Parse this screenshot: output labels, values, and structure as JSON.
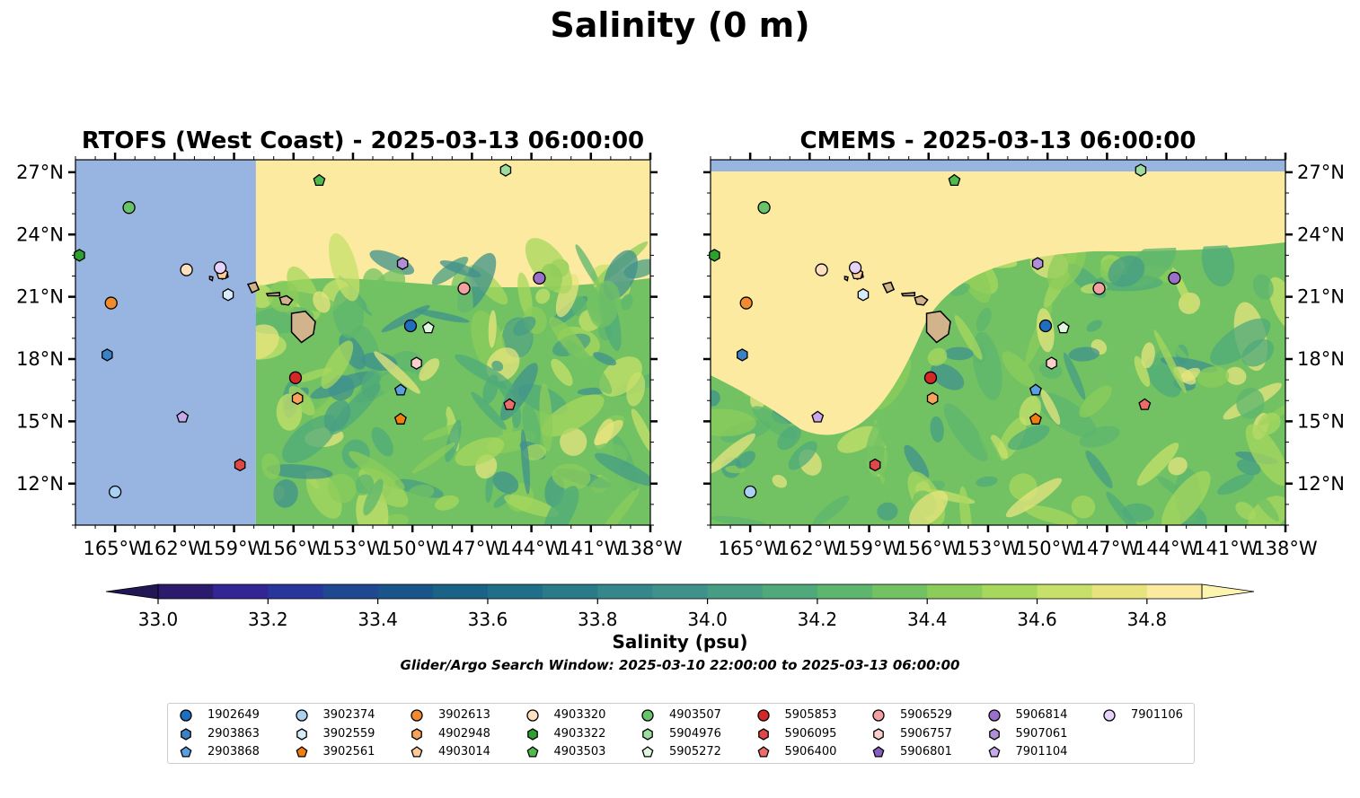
{
  "title": "Salinity (0 m)",
  "panels": [
    {
      "title": "RTOFS (West Coast) - 2025-03-13 06:00:00"
    },
    {
      "title": "CMEMS - 2025-03-13 06:00:00"
    }
  ],
  "map": {
    "lon_range": [
      -167,
      -138
    ],
    "lat_range": [
      10,
      27.6
    ],
    "x_ticks": [
      "165°W",
      "162°W",
      "159°W",
      "156°W",
      "153°W",
      "150°W",
      "147°W",
      "144°W",
      "141°W",
      "138°W"
    ],
    "y_ticks": [
      "27°N",
      "24°N",
      "21°N",
      "18°N",
      "15°N",
      "12°N"
    ],
    "land_color": "#d2b48c",
    "no_data_color": "#97b5e0"
  },
  "colorbar": {
    "label": "Salinity (psu)",
    "ticks": [
      "33.0",
      "33.2",
      "33.4",
      "33.6",
      "33.8",
      "34.0",
      "34.2",
      "34.4",
      "34.6",
      "34.8"
    ],
    "range": [
      33.0,
      34.9
    ],
    "extend": "both",
    "colors": [
      "#2c1a6d",
      "#322594",
      "#28369b",
      "#1f4890",
      "#19558a",
      "#1b6287",
      "#206f88",
      "#2a7b8a",
      "#36878b",
      "#3f928c",
      "#469d84",
      "#4fa97a",
      "#5db56e",
      "#72c163",
      "#8ccc5a",
      "#a8d75d",
      "#c7e06a",
      "#e7e47e",
      "#fbea9f"
    ]
  },
  "search_window": "Glider/Argo Search Window: 2025-03-10 22:00:00 to 2025-03-13 06:00:00",
  "floats": [
    {
      "id": "1902649",
      "marker": "circle",
      "color": "#1f6fbf",
      "lon": -150.1,
      "lat": 19.6
    },
    {
      "id": "2903863",
      "marker": "hexagon",
      "color": "#3a82c4",
      "lon": -165.4,
      "lat": 18.2
    },
    {
      "id": "2903868",
      "marker": "pentagon",
      "color": "#5aa0e0",
      "lon": -150.6,
      "lat": 16.5
    },
    {
      "id": "3902374",
      "marker": "circle",
      "color": "#a9d2f2",
      "lon": -165.0,
      "lat": 11.6
    },
    {
      "id": "3902559",
      "marker": "hexagon",
      "color": "#d7ecfa",
      "lon": -159.3,
      "lat": 21.1
    },
    {
      "id": "3902561",
      "marker": "pentagon",
      "color": "#f07f0f",
      "lon": -150.6,
      "lat": 15.1
    },
    {
      "id": "3902613",
      "marker": "circle",
      "color": "#f28b30",
      "lon": -165.2,
      "lat": 20.7
    },
    {
      "id": "4902948",
      "marker": "hexagon",
      "color": "#f7a35c",
      "lon": -155.8,
      "lat": 16.1
    },
    {
      "id": "4903014",
      "marker": "pentagon",
      "color": "#fbcb9a",
      "lon": -159.6,
      "lat": 22.1
    },
    {
      "id": "4903320",
      "marker": "circle",
      "color": "#fde0c0",
      "lon": -161.4,
      "lat": 22.3
    },
    {
      "id": "4903322",
      "marker": "hexagon",
      "color": "#2ea02e",
      "lon": -166.8,
      "lat": 23.0
    },
    {
      "id": "4903503",
      "marker": "pentagon",
      "color": "#4fbb4f",
      "lon": -154.7,
      "lat": 26.6
    },
    {
      "id": "4903507",
      "marker": "circle",
      "color": "#68c468",
      "lon": -164.3,
      "lat": 25.3
    },
    {
      "id": "5904976",
      "marker": "hexagon",
      "color": "#9fdc9f",
      "lon": -145.3,
      "lat": 27.1
    },
    {
      "id": "5905272",
      "marker": "pentagon",
      "color": "#dff7df",
      "lon": -149.2,
      "lat": 19.5
    },
    {
      "id": "5905853",
      "marker": "circle",
      "color": "#d62728",
      "lon": -155.9,
      "lat": 17.1
    },
    {
      "id": "5906095",
      "marker": "hexagon",
      "color": "#e04747",
      "lon": -158.7,
      "lat": 12.9
    },
    {
      "id": "5906400",
      "marker": "pentagon",
      "color": "#ec6c6c",
      "lon": -145.1,
      "lat": 15.8
    },
    {
      "id": "5906529",
      "marker": "circle",
      "color": "#f2a0a0",
      "lon": -147.4,
      "lat": 21.4
    },
    {
      "id": "5906757",
      "marker": "hexagon",
      "color": "#fbd0cc",
      "lon": -149.8,
      "lat": 17.8
    },
    {
      "id": "5906801",
      "marker": "pentagon",
      "color": "#8a5cc0",
      "lon": null,
      "lat": null
    },
    {
      "id": "5906814",
      "marker": "circle",
      "color": "#9a6fc9",
      "lon": -143.6,
      "lat": 21.9
    },
    {
      "id": "5907061",
      "marker": "hexagon",
      "color": "#b08fd8",
      "lon": -150.5,
      "lat": 22.6
    },
    {
      "id": "7901104",
      "marker": "pentagon",
      "color": "#c9a8ec",
      "lon": -161.6,
      "lat": 15.2
    },
    {
      "id": "7901106",
      "marker": "circle",
      "color": "#e6d2fa",
      "lon": -159.7,
      "lat": 22.4
    }
  ]
}
